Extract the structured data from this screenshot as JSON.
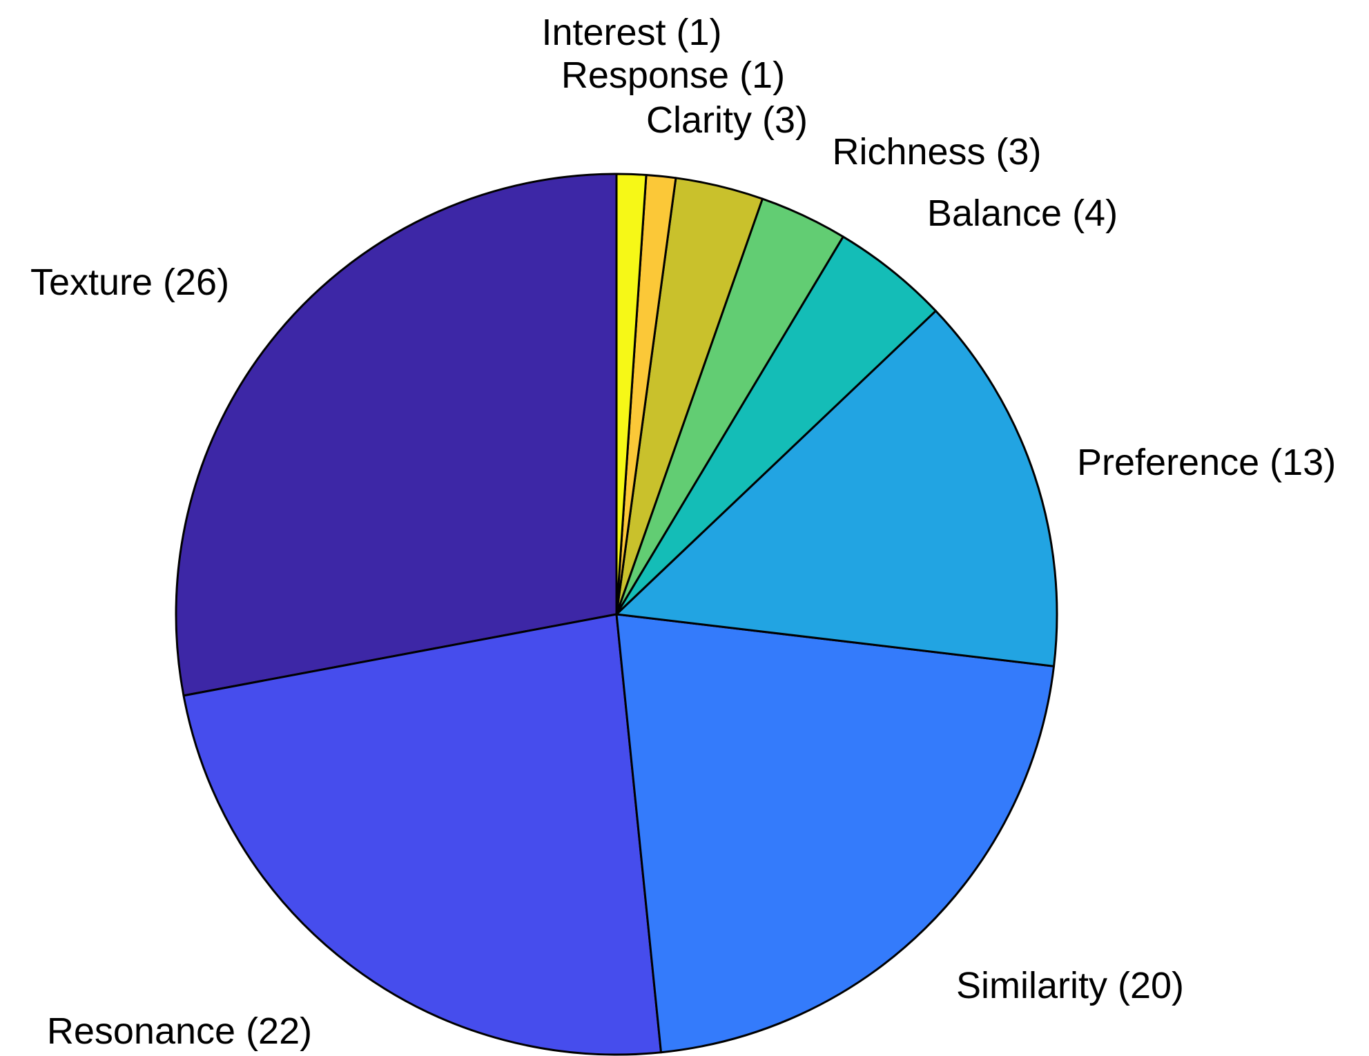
{
  "chart_data": {
    "type": "pie",
    "direction": "clockwise",
    "start_angle_deg": 90,
    "slices": [
      {
        "category": "Texture",
        "value": 26,
        "label": "Texture (26)",
        "color": "#3d27a6"
      },
      {
        "category": "Resonance",
        "value": 22,
        "label": "Resonance (22)",
        "color": "#464ded"
      },
      {
        "category": "Similarity",
        "value": 20,
        "label": "Similarity (20)",
        "color": "#347bfb"
      },
      {
        "category": "Preference",
        "value": 13,
        "label": "Preference (13)",
        "color": "#22a4e2"
      },
      {
        "category": "Balance",
        "value": 4,
        "label": "Balance (4)",
        "color": "#14bdb7"
      },
      {
        "category": "Richness",
        "value": 3,
        "label": "Richness (3)",
        "color": "#62cd73"
      },
      {
        "category": "Clarity",
        "value": 3,
        "label": "Clarity (3)",
        "color": "#c9c12c"
      },
      {
        "category": "Response",
        "value": 1,
        "label": "Response (1)",
        "color": "#fbc838"
      },
      {
        "category": "Interest",
        "value": 1,
        "label": "Interest (1)",
        "color": "#f6f817"
      }
    ]
  }
}
